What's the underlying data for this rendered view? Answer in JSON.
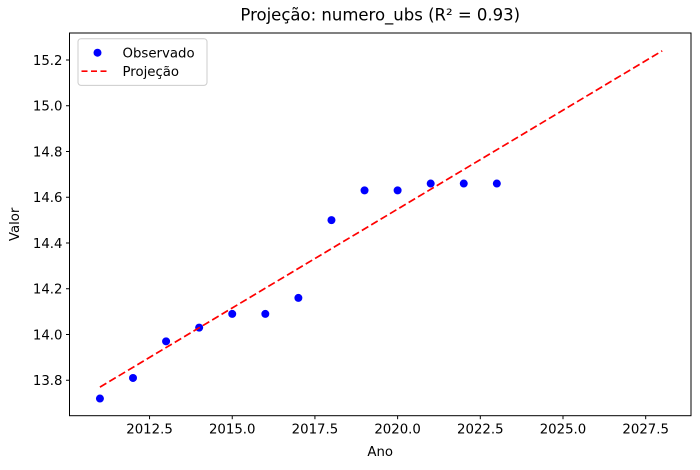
{
  "figure": {
    "background": "#ffffff",
    "axis_color": "#000000",
    "legend_border_color": "#cccccc"
  },
  "chart_data": {
    "type": "scatter",
    "title": "Projeção: numero_ubs (R² = 0.93)",
    "xlabel": "Ano",
    "ylabel": "Valor",
    "xlim": [
      2010.08,
      2028.87
    ],
    "ylim": [
      13.645,
      15.318
    ],
    "x_ticks": [
      2012.5,
      2015.0,
      2017.5,
      2020.0,
      2022.5,
      2025.0,
      2027.5
    ],
    "x_tick_labels": [
      "2012.5",
      "2015.0",
      "2017.5",
      "2020.0",
      "2022.5",
      "2025.0",
      "2027.5"
    ],
    "y_ticks": [
      13.8,
      14.0,
      14.2,
      14.4,
      14.6,
      14.8,
      15.0,
      15.2
    ],
    "y_tick_labels": [
      "13.8",
      "14.0",
      "14.2",
      "14.4",
      "14.6",
      "14.8",
      "15.0",
      "15.2"
    ],
    "grid": false,
    "legend": {
      "position": "upper-left",
      "entries": [
        {
          "label": "Observado",
          "marker": "circle",
          "color": "#0000ff"
        },
        {
          "label": "Projeção",
          "marker": "dashed-line",
          "color": "#ff0000"
        }
      ]
    },
    "series": [
      {
        "name": "Observado",
        "type": "scatter",
        "color": "#0000ff",
        "x": [
          2011,
          2012,
          2013,
          2014,
          2015,
          2016,
          2017,
          2018,
          2019,
          2020,
          2021,
          2022,
          2023
        ],
        "y": [
          13.72,
          13.81,
          13.97,
          14.03,
          14.09,
          14.09,
          14.16,
          14.5,
          14.63,
          14.63,
          14.66,
          14.66,
          14.66
        ]
      },
      {
        "name": "Projeção",
        "type": "line",
        "style": "dashed",
        "color": "#ff0000",
        "x": [
          2011,
          2028
        ],
        "y": [
          13.77,
          15.24
        ]
      }
    ]
  }
}
